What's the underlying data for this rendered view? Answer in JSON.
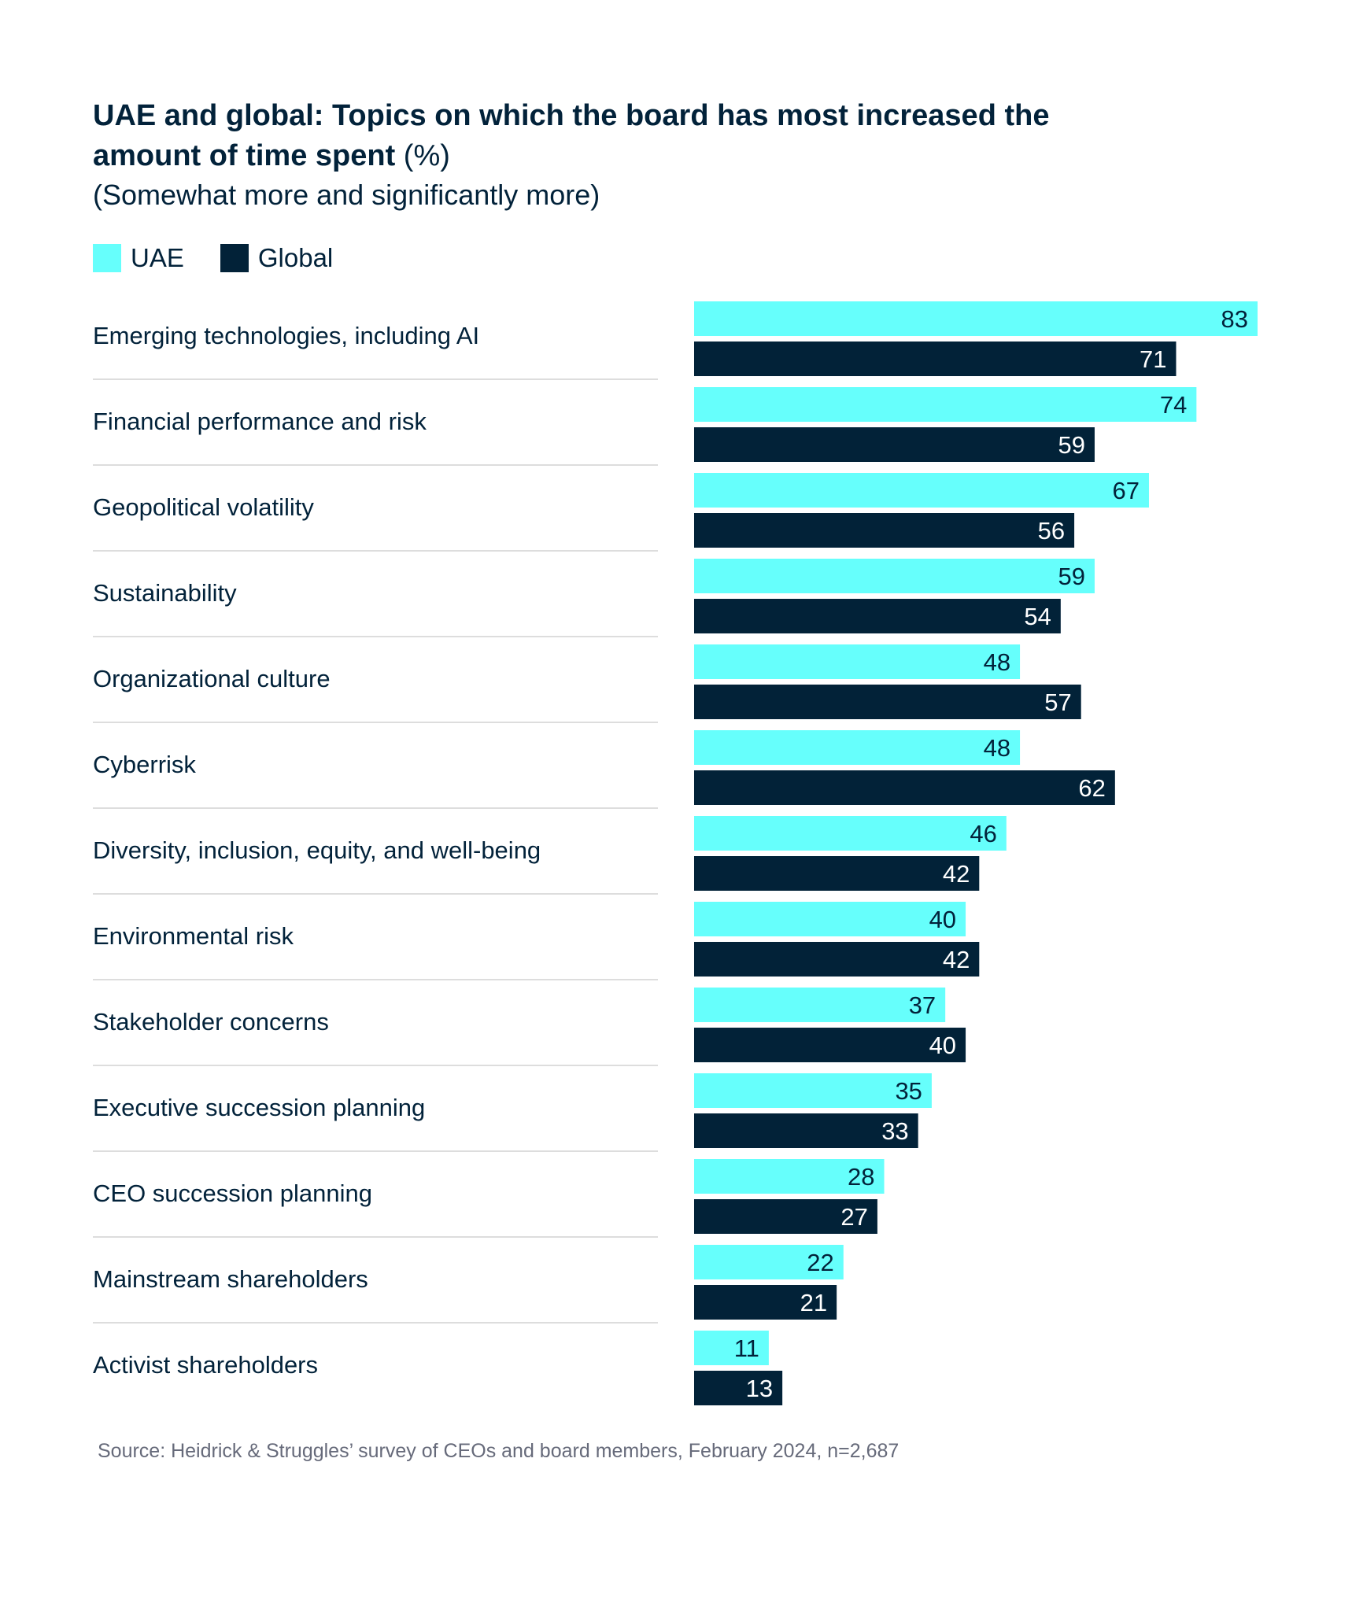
{
  "title_bold": "UAE and global: Topics on which the board has most increased the amount of time spent",
  "title_unit": " (%)",
  "subtitle": "(Somewhat more and significantly more)",
  "source": "Source: Heidrick & Struggles’ survey of CEOs and board members, February 2024, n=2,687",
  "colors": {
    "uae": "#66FFFC",
    "global": "#022238",
    "separator": "#dddddd"
  },
  "chart_data": {
    "type": "bar",
    "orientation": "horizontal",
    "title": "UAE and global: Topics on which the board has most increased the amount of time spent (%)",
    "subtitle": "(Somewhat more and significantly more)",
    "legend": [
      "UAE",
      "Global"
    ],
    "legend_position": "top-left",
    "grid": false,
    "xlim": [
      0,
      83
    ],
    "categories": [
      "Emerging technologies, including AI",
      "Financial performance and risk",
      "Geopolitical volatility",
      "Sustainability",
      "Organizational culture",
      "Cyberrisk",
      "Diversity, inclusion, equity, and well-being",
      "Environmental risk",
      "Stakeholder concerns",
      "Executive succession planning",
      "CEO succession planning",
      "Mainstream shareholders",
      "Activist shareholders"
    ],
    "series": [
      {
        "name": "UAE",
        "values": [
          83,
          74,
          67,
          59,
          48,
          48,
          46,
          40,
          37,
          35,
          28,
          22,
          11
        ]
      },
      {
        "name": "Global",
        "values": [
          71,
          59,
          56,
          54,
          57,
          62,
          42,
          42,
          40,
          33,
          27,
          21,
          13
        ]
      }
    ]
  }
}
